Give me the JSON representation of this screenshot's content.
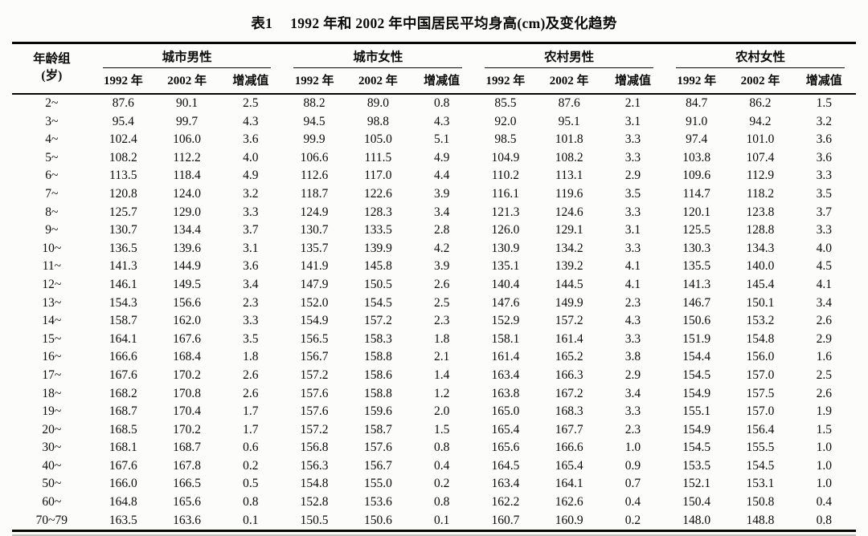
{
  "caption": {
    "label": "表1",
    "text": "1992 年和 2002 年中国居民平均身高(cm)及变化趋势"
  },
  "table": {
    "age_header": {
      "line1": "年龄组",
      "line2": "(岁)"
    },
    "groups": [
      "城市男性",
      "城市女性",
      "农村男性",
      "农村女性"
    ],
    "sub_headers": [
      "1992 年",
      "2002 年",
      "增减值"
    ],
    "rows": [
      {
        "age": "2~",
        "values": [
          "87.6",
          "90.1",
          "2.5",
          "88.2",
          "89.0",
          "0.8",
          "85.5",
          "87.6",
          "2.1",
          "84.7",
          "86.2",
          "1.5"
        ]
      },
      {
        "age": "3~",
        "values": [
          "95.4",
          "99.7",
          "4.3",
          "94.5",
          "98.8",
          "4.3",
          "92.0",
          "95.1",
          "3.1",
          "91.0",
          "94.2",
          "3.2"
        ]
      },
      {
        "age": "4~",
        "values": [
          "102.4",
          "106.0",
          "3.6",
          "99.9",
          "105.0",
          "5.1",
          "98.5",
          "101.8",
          "3.3",
          "97.4",
          "101.0",
          "3.6"
        ]
      },
      {
        "age": "5~",
        "values": [
          "108.2",
          "112.2",
          "4.0",
          "106.6",
          "111.5",
          "4.9",
          "104.9",
          "108.2",
          "3.3",
          "103.8",
          "107.4",
          "3.6"
        ]
      },
      {
        "age": "6~",
        "values": [
          "113.5",
          "118.4",
          "4.9",
          "112.6",
          "117.0",
          "4.4",
          "110.2",
          "113.1",
          "2.9",
          "109.6",
          "112.9",
          "3.3"
        ]
      },
      {
        "age": "7~",
        "values": [
          "120.8",
          "124.0",
          "3.2",
          "118.7",
          "122.6",
          "3.9",
          "116.1",
          "119.6",
          "3.5",
          "114.7",
          "118.2",
          "3.5"
        ]
      },
      {
        "age": "8~",
        "values": [
          "125.7",
          "129.0",
          "3.3",
          "124.9",
          "128.3",
          "3.4",
          "121.3",
          "124.6",
          "3.3",
          "120.1",
          "123.8",
          "3.7"
        ]
      },
      {
        "age": "9~",
        "values": [
          "130.7",
          "134.4",
          "3.7",
          "130.7",
          "133.5",
          "2.8",
          "126.0",
          "129.1",
          "3.1",
          "125.5",
          "128.8",
          "3.3"
        ]
      },
      {
        "age": "10~",
        "values": [
          "136.5",
          "139.6",
          "3.1",
          "135.7",
          "139.9",
          "4.2",
          "130.9",
          "134.2",
          "3.3",
          "130.3",
          "134.3",
          "4.0"
        ]
      },
      {
        "age": "11~",
        "values": [
          "141.3",
          "144.9",
          "3.6",
          "141.9",
          "145.8",
          "3.9",
          "135.1",
          "139.2",
          "4.1",
          "135.5",
          "140.0",
          "4.5"
        ]
      },
      {
        "age": "12~",
        "values": [
          "146.1",
          "149.5",
          "3.4",
          "147.9",
          "150.5",
          "2.6",
          "140.4",
          "144.5",
          "4.1",
          "141.3",
          "145.4",
          "4.1"
        ]
      },
      {
        "age": "13~",
        "values": [
          "154.3",
          "156.6",
          "2.3",
          "152.0",
          "154.5",
          "2.5",
          "147.6",
          "149.9",
          "2.3",
          "146.7",
          "150.1",
          "3.4"
        ]
      },
      {
        "age": "14~",
        "values": [
          "158.7",
          "162.0",
          "3.3",
          "154.9",
          "157.2",
          "2.3",
          "152.9",
          "157.2",
          "4.3",
          "150.6",
          "153.2",
          "2.6"
        ]
      },
      {
        "age": "15~",
        "values": [
          "164.1",
          "167.6",
          "3.5",
          "156.5",
          "158.3",
          "1.8",
          "158.1",
          "161.4",
          "3.3",
          "151.9",
          "154.8",
          "2.9"
        ]
      },
      {
        "age": "16~",
        "values": [
          "166.6",
          "168.4",
          "1.8",
          "156.7",
          "158.8",
          "2.1",
          "161.4",
          "165.2",
          "3.8",
          "154.4",
          "156.0",
          "1.6"
        ]
      },
      {
        "age": "17~",
        "values": [
          "167.6",
          "170.2",
          "2.6",
          "157.2",
          "158.6",
          "1.4",
          "163.4",
          "166.3",
          "2.9",
          "154.5",
          "157.0",
          "2.5"
        ]
      },
      {
        "age": "18~",
        "values": [
          "168.2",
          "170.8",
          "2.6",
          "157.6",
          "158.8",
          "1.2",
          "163.8",
          "167.2",
          "3.4",
          "154.9",
          "157.5",
          "2.6"
        ]
      },
      {
        "age": "19~",
        "values": [
          "168.7",
          "170.4",
          "1.7",
          "157.6",
          "159.6",
          "2.0",
          "165.0",
          "168.3",
          "3.3",
          "155.1",
          "157.0",
          "1.9"
        ]
      },
      {
        "age": "20~",
        "values": [
          "168.5",
          "170.2",
          "1.7",
          "157.2",
          "158.7",
          "1.5",
          "165.4",
          "167.7",
          "2.3",
          "154.9",
          "156.4",
          "1.5"
        ]
      },
      {
        "age": "30~",
        "values": [
          "168.1",
          "168.7",
          "0.6",
          "156.8",
          "157.6",
          "0.8",
          "165.6",
          "166.6",
          "1.0",
          "154.5",
          "155.5",
          "1.0"
        ]
      },
      {
        "age": "40~",
        "values": [
          "167.6",
          "167.8",
          "0.2",
          "156.3",
          "156.7",
          "0.4",
          "164.5",
          "165.4",
          "0.9",
          "153.5",
          "154.5",
          "1.0"
        ]
      },
      {
        "age": "50~",
        "values": [
          "166.0",
          "166.5",
          "0.5",
          "154.8",
          "155.0",
          "0.2",
          "163.4",
          "164.1",
          "0.7",
          "152.1",
          "153.1",
          "1.0"
        ]
      },
      {
        "age": "60~",
        "values": [
          "164.8",
          "165.6",
          "0.8",
          "152.8",
          "153.6",
          "0.8",
          "162.2",
          "162.6",
          "0.4",
          "150.4",
          "150.8",
          "0.4"
        ]
      },
      {
        "age": "70~79",
        "values": [
          "163.5",
          "163.6",
          "0.1",
          "150.5",
          "150.6",
          "0.1",
          "160.7",
          "160.9",
          "0.2",
          "148.0",
          "148.8",
          "0.8"
        ]
      }
    ]
  }
}
